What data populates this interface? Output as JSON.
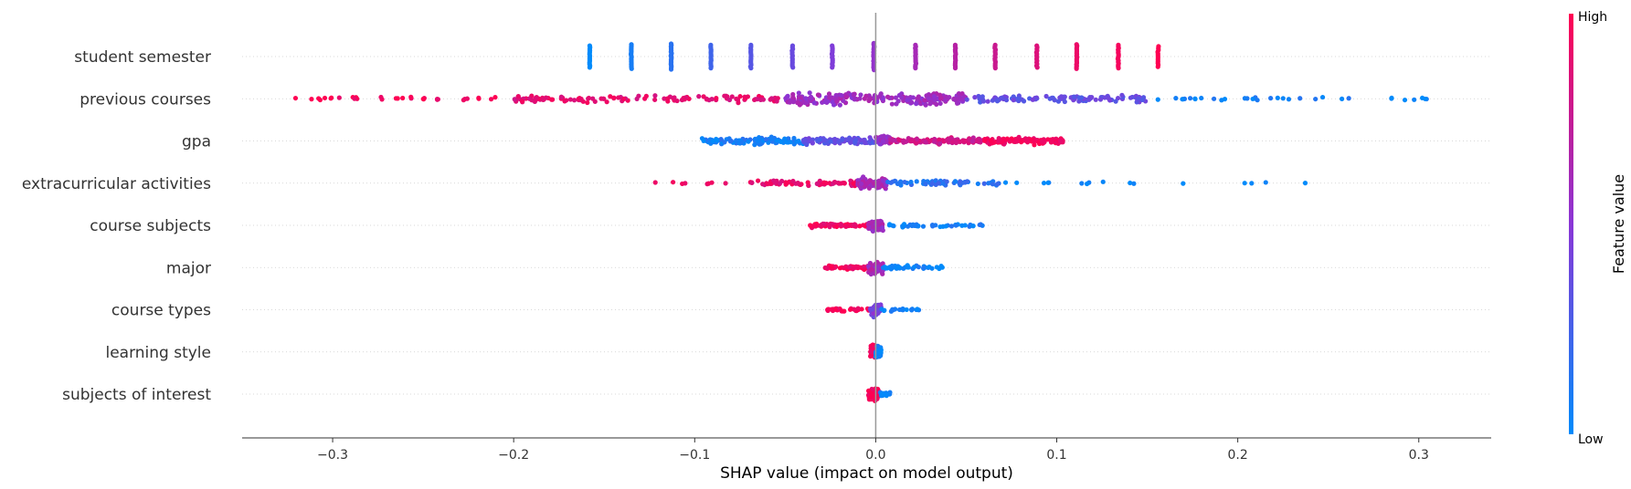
{
  "chart_data": {
    "type": "scatter",
    "subtype": "shap-beeswarm",
    "xlabel": "SHAP value (impact on model output)",
    "xlim": [
      -0.35,
      0.34
    ],
    "x_ticks": [
      -0.3,
      -0.2,
      -0.1,
      0.0,
      0.1,
      0.2,
      0.3
    ],
    "x_tick_labels": [
      "−0.3",
      "−0.2",
      "−0.1",
      "0.0",
      "0.1",
      "0.2",
      "0.3"
    ],
    "zero_line": 0.0,
    "colorbar": {
      "title": "Feature value",
      "high_label": "High",
      "low_label": "Low",
      "low_color": "#008bfb",
      "mid_color": "#8a36d6",
      "high_color": "#ff0052",
      "placement": "right"
    },
    "features": [
      {
        "name": "student semester",
        "style": "discrete",
        "clusters": [
          {
            "x": -0.158,
            "value": 0.0,
            "count": 14
          },
          {
            "x": -0.135,
            "value": 0.08,
            "count": 18
          },
          {
            "x": -0.113,
            "value": 0.15,
            "count": 20
          },
          {
            "x": -0.091,
            "value": 0.23,
            "count": 16
          },
          {
            "x": -0.069,
            "value": 0.31,
            "count": 16
          },
          {
            "x": -0.046,
            "value": 0.38,
            "count": 14
          },
          {
            "x": -0.024,
            "value": 0.46,
            "count": 14
          },
          {
            "x": -0.001,
            "value": 0.54,
            "count": 22
          },
          {
            "x": 0.022,
            "value": 0.62,
            "count": 16
          },
          {
            "x": 0.044,
            "value": 0.69,
            "count": 16
          },
          {
            "x": 0.066,
            "value": 0.77,
            "count": 16
          },
          {
            "x": 0.089,
            "value": 0.85,
            "count": 14
          },
          {
            "x": 0.111,
            "value": 0.92,
            "count": 18
          },
          {
            "x": 0.134,
            "value": 0.96,
            "count": 16
          },
          {
            "x": 0.156,
            "value": 1.0,
            "count": 12
          }
        ]
      },
      {
        "name": "previous courses",
        "style": "continuous",
        "segments": [
          {
            "x0": -0.322,
            "x1": -0.2,
            "n": 32,
            "value": 0.98,
            "spread": 0.25
          },
          {
            "x0": -0.2,
            "x1": -0.05,
            "n": 120,
            "value": 0.88,
            "spread": 0.6
          },
          {
            "x0": -0.05,
            "x1": 0.05,
            "n": 220,
            "value": 0.58,
            "spread": 1.0
          },
          {
            "x0": 0.05,
            "x1": 0.15,
            "n": 110,
            "value": 0.35,
            "spread": 0.6
          },
          {
            "x0": 0.15,
            "x1": 0.31,
            "n": 34,
            "value": 0.05,
            "spread": 0.25
          }
        ]
      },
      {
        "name": "gpa",
        "style": "continuous",
        "segments": [
          {
            "x0": -0.096,
            "x1": -0.04,
            "n": 110,
            "value": 0.08,
            "spread": 0.55
          },
          {
            "x0": -0.04,
            "x1": 0.0,
            "n": 90,
            "value": 0.35,
            "spread": 0.5
          },
          {
            "x0": 0.0,
            "x1": 0.008,
            "n": 40,
            "value": 0.55,
            "spread": 1.0
          },
          {
            "x0": 0.008,
            "x1": 0.06,
            "n": 110,
            "value": 0.78,
            "spread": 0.55
          },
          {
            "x0": 0.06,
            "x1": 0.104,
            "n": 120,
            "value": 0.97,
            "spread": 0.6
          }
        ]
      },
      {
        "name": "extracurricular activities",
        "style": "continuous",
        "segments": [
          {
            "x0": -0.122,
            "x1": -0.07,
            "n": 8,
            "value": 0.98,
            "spread": 0.2
          },
          {
            "x0": -0.07,
            "x1": -0.01,
            "n": 70,
            "value": 0.9,
            "spread": 0.4
          },
          {
            "x0": -0.01,
            "x1": 0.006,
            "n": 90,
            "value": 0.6,
            "spread": 1.0
          },
          {
            "x0": 0.006,
            "x1": 0.07,
            "n": 60,
            "value": 0.15,
            "spread": 0.4
          },
          {
            "x0": 0.07,
            "x1": 0.238,
            "n": 16,
            "value": 0.02,
            "spread": 0.2
          }
        ]
      },
      {
        "name": "course subjects",
        "style": "continuous",
        "segments": [
          {
            "x0": -0.037,
            "x1": -0.004,
            "n": 60,
            "value": 0.95,
            "spread": 0.35
          },
          {
            "x0": -0.004,
            "x1": 0.004,
            "n": 70,
            "value": 0.6,
            "spread": 1.0
          },
          {
            "x0": 0.004,
            "x1": 0.06,
            "n": 40,
            "value": 0.05,
            "spread": 0.3
          }
        ]
      },
      {
        "name": "major",
        "style": "continuous",
        "segments": [
          {
            "x0": -0.028,
            "x1": -0.004,
            "n": 50,
            "value": 0.95,
            "spread": 0.3
          },
          {
            "x0": -0.004,
            "x1": 0.004,
            "n": 60,
            "value": 0.62,
            "spread": 1.0
          },
          {
            "x0": 0.004,
            "x1": 0.037,
            "n": 40,
            "value": 0.04,
            "spread": 0.3
          }
        ]
      },
      {
        "name": "course types",
        "style": "continuous",
        "segments": [
          {
            "x0": -0.027,
            "x1": -0.003,
            "n": 30,
            "value": 0.97,
            "spread": 0.25
          },
          {
            "x0": -0.003,
            "x1": 0.003,
            "n": 50,
            "value": 0.45,
            "spread": 1.0
          },
          {
            "x0": 0.003,
            "x1": 0.024,
            "n": 20,
            "value": 0.03,
            "spread": 0.25
          }
        ]
      },
      {
        "name": "learning style",
        "style": "continuous",
        "segments": [
          {
            "x0": -0.003,
            "x1": 0.0,
            "n": 50,
            "value": 0.97,
            "spread": 1.0
          },
          {
            "x0": 0.0,
            "x1": 0.003,
            "n": 50,
            "value": 0.03,
            "spread": 1.0
          }
        ]
      },
      {
        "name": "subjects of interest",
        "style": "continuous",
        "segments": [
          {
            "x0": -0.004,
            "x1": 0.002,
            "n": 70,
            "value": 0.95,
            "spread": 1.0
          },
          {
            "x0": 0.002,
            "x1": 0.008,
            "n": 20,
            "value": 0.05,
            "spread": 0.35
          }
        ]
      }
    ]
  }
}
